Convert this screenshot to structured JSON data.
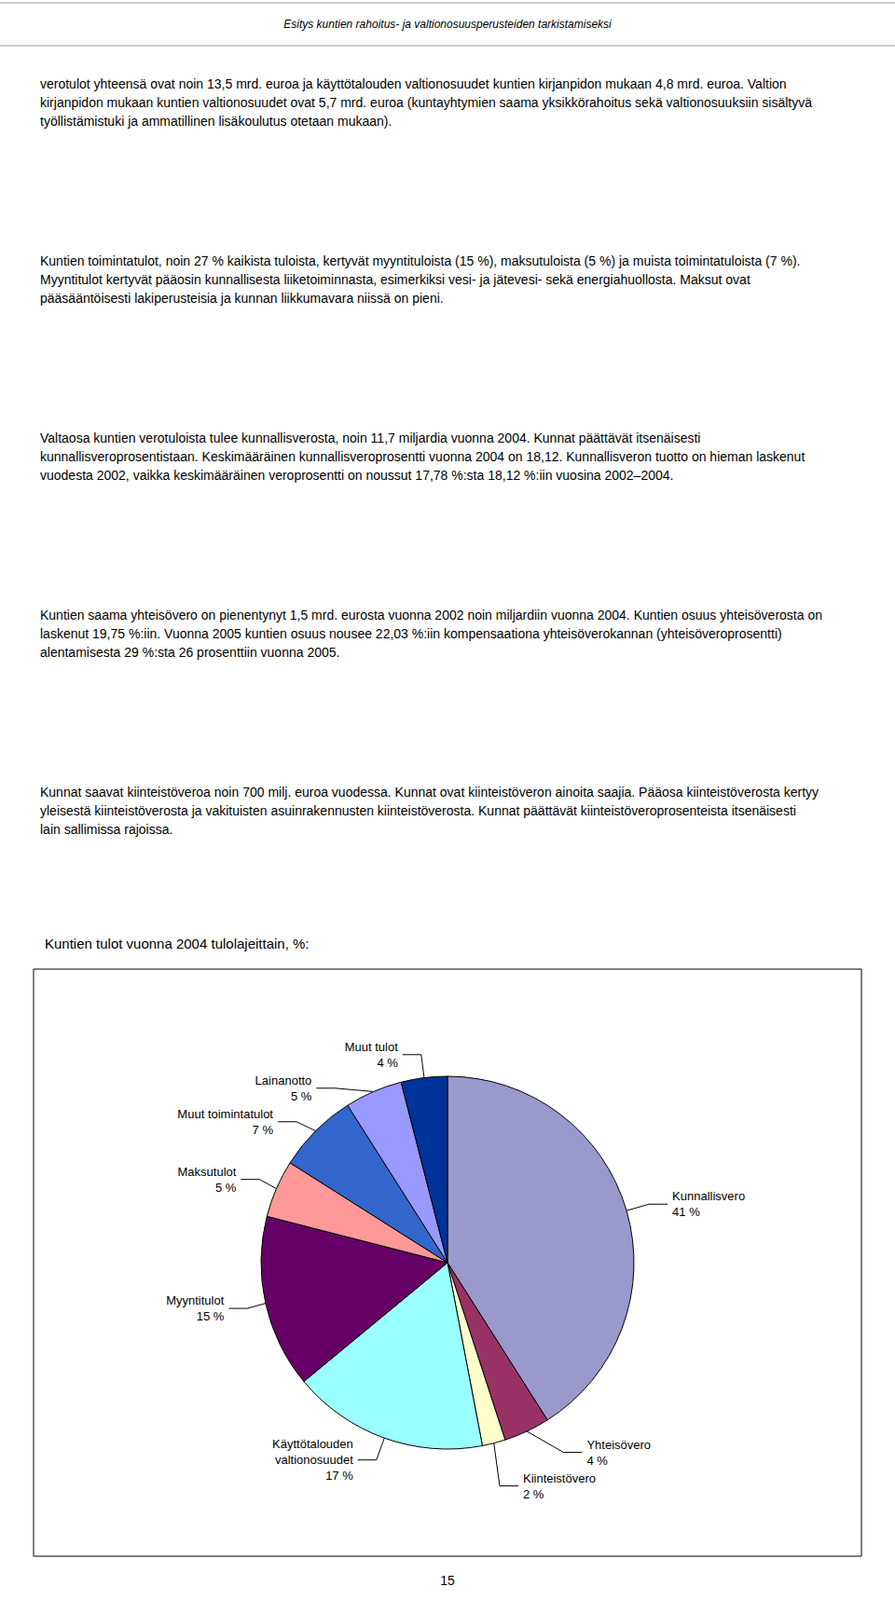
{
  "header_text": "Esitys kuntien rahoitus- ja valtionosuusperusteiden tarkistamiseksi",
  "paragraphs": [
    "verotulot yhteensä ovat noin 13,5 mrd. euroa ja käyttötalouden valtionosuudet kuntien kirjanpidon mukaan 4,8 mrd. euroa. Valtion kirjanpidon mukaan kuntien valtionosuudet ovat 5,7 mrd. euroa (kuntayhtymien saama yksikkörahoitus sekä valtionosuuksiin sisältyvä työllistämistuki ja ammatillinen lisäkoulutus otetaan mukaan).",
    "Kuntien toimintatulot, noin 27 % kaikista tuloista, kertyvät myyntituloista (15 %), maksutuloista (5 %) ja muista toimintatuloista (7 %). Myyntitulot kertyvät pääosin kunnallisesta liiketoiminnasta, esimerkiksi vesi- ja jätevesi- sekä energiahuollosta. Maksut ovat pääsääntöisesti lakiperusteisia ja kunnan liikkumavara niissä on pieni.",
    "Valtaosa kuntien verotuloista tulee kunnallisverosta, noin 11,7 miljardia vuonna 2004. Kunnat päättävät itsenäisesti kunnallisveroprosentistaan. Keskimääräinen kunnallisveroprosentti vuonna 2004 on 18,12. Kunnallisveron tuotto on hieman laskenut vuodesta 2002, vaikka keskimääräinen veroprosentti on noussut 17,78 %:sta 18,12 %:iin vuosina 2002–2004.",
    "Kuntien saama yhteisövero on pienentynyt 1,5 mrd. eurosta vuonna 2002 noin miljardiin vuonna 2004. Kuntien osuus yhteisöverosta on laskenut 19,75 %:iin. Vuonna 2005 kuntien osuus nousee 22,03 %:iin kompensaationa yhteisöverokannan (yhteisöveroprosentti) alentamisesta 29 %:sta 26 prosenttiin vuonna 2005.",
    "Kunnat saavat kiinteistöveroa noin 700 milj. euroa vuodessa. Kunnat ovat kiinteistöveron ainoita saajia. Pääosa kiinteistöverosta kertyy yleisestä kiinteistöverosta ja vakituisten asuinrakennusten kiinteistöverosta. Kunnat päättävät kiinteistöveroprosenteista itsenäisesti lain sallimissa rajoissa."
  ],
  "page_number": "15",
  "chart_data": {
    "type": "pie",
    "title": "Kuntien tulot vuonna 2004 tulolajeittain, %:",
    "categories": [
      "Kunnallisvero",
      "Yhteisövero",
      "Kiinteistövero",
      "Käyttötalouden\nvaltionosuudet",
      "Myyntitulot",
      "Maksutulot",
      "Muut toimintatulot",
      "Lainanotto",
      "Muut tulot"
    ],
    "values": [
      41,
      4,
      2,
      17,
      15,
      5,
      7,
      5,
      4
    ],
    "value_labels": [
      "41 %",
      "4 %",
      "2 %",
      "17 %",
      "15 %",
      "5 %",
      "7 %",
      "5 %",
      "4 %"
    ],
    "colors": [
      "#9999cc",
      "#993366",
      "#ffffcc",
      "#99ffff",
      "#660066",
      "#ff9999",
      "#3366cc",
      "#9999ff",
      "#003399"
    ],
    "data_labels": true
  }
}
